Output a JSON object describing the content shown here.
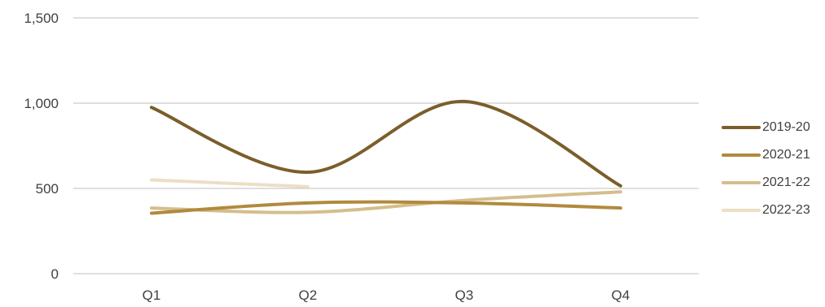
{
  "chart_data": {
    "type": "line",
    "title": "",
    "xlabel": "",
    "ylabel": "",
    "categories": [
      "Q1",
      "Q2",
      "Q3",
      "Q4"
    ],
    "ylim": [
      0,
      1500
    ],
    "yticks": [
      0,
      500,
      1000,
      1500
    ],
    "ytick_labels": [
      "0",
      "500",
      "1,000",
      "1,500"
    ],
    "grid": true,
    "smooth": true,
    "legend_position": "right",
    "series": [
      {
        "name": "2019-20",
        "color": "#7b5e2b",
        "values": [
          975,
          595,
          1010,
          515
        ]
      },
      {
        "name": "2020-21",
        "color": "#b18a3d",
        "values": [
          355,
          415,
          415,
          385
        ]
      },
      {
        "name": "2021-22",
        "color": "#d4be8c",
        "values": [
          385,
          360,
          430,
          480
        ]
      },
      {
        "name": "2022-23",
        "color": "#ebdfc5",
        "values": [
          550,
          510,
          null,
          null
        ]
      }
    ]
  }
}
